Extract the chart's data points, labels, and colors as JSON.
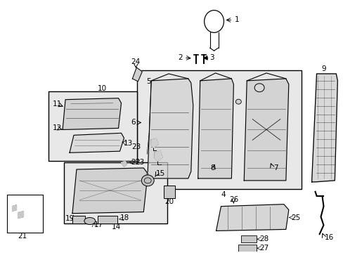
{
  "bg_color": "#ffffff",
  "lc": "#000000",
  "fig_width": 4.89,
  "fig_height": 3.6,
  "dpi": 100,
  "box_fill": "#e8e8e8",
  "part_fill": "#e0e0e0"
}
